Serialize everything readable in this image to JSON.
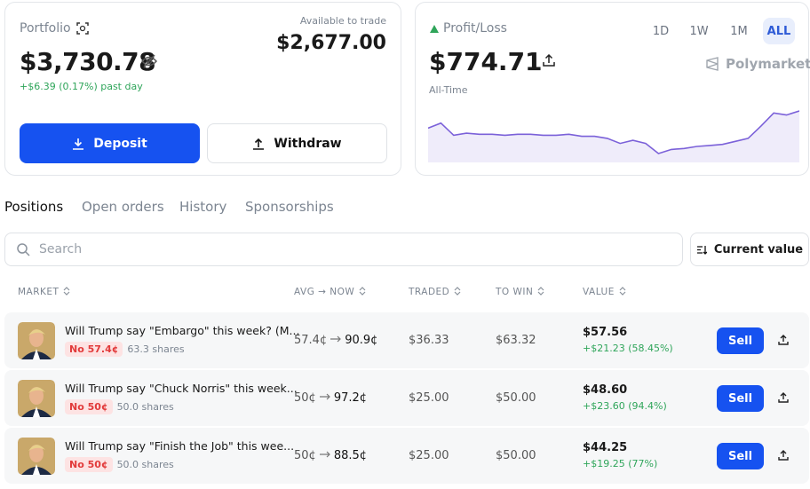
{
  "portfolio": {
    "label": "Portfolio",
    "value": "$3,730.78",
    "change": "+$6.39 (0.17%) past day",
    "available_label": "Available to trade",
    "available_value": "$2,677.00",
    "deposit": "Deposit",
    "withdraw": "Withdraw"
  },
  "pnl": {
    "label": "Profit/Loss",
    "value": "$774.71",
    "period": "All-Time",
    "ranges": [
      "1D",
      "1W",
      "1M",
      "ALL"
    ],
    "active_range": "ALL",
    "brand": "Polymarket",
    "chart": {
      "type": "line",
      "color": "#7b61d9",
      "values": [
        55,
        60,
        48,
        50,
        49,
        49,
        48,
        49,
        49,
        48,
        48,
        49,
        47,
        47,
        45,
        40,
        43,
        40,
        30,
        34,
        35,
        37,
        38,
        39,
        42,
        45,
        57,
        70,
        68,
        72
      ]
    }
  },
  "tabs": [
    "Positions",
    "Open orders",
    "History",
    "Sponsorships"
  ],
  "active_tab": "Positions",
  "search": {
    "placeholder": "Search",
    "sort": "Current value"
  },
  "table": {
    "columns": [
      "MARKET",
      "AVG → NOW",
      "TRADED",
      "TO WIN",
      "VALUE"
    ],
    "rows": [
      {
        "title": "Will Trump say \"Embargo\" this week? (M...",
        "outcome": "No 57.4¢",
        "shares": "63.3 shares",
        "avg": "57.4¢",
        "now": "90.9¢",
        "traded": "$36.33",
        "to_win": "$63.32",
        "value": "$57.56",
        "change": "+$21.23 (58.45%)",
        "action": "Sell"
      },
      {
        "title": "Will Trump say \"Chuck Norris\" this week...",
        "outcome": "No 50¢",
        "shares": "50.0 shares",
        "avg": "50¢",
        "now": "97.2¢",
        "traded": "$25.00",
        "to_win": "$50.00",
        "value": "$48.60",
        "change": "+$23.60 (94.4%)",
        "action": "Sell"
      },
      {
        "title": "Will Trump say \"Finish the Job\" this wee...",
        "outcome": "No 50¢",
        "shares": "50.0 shares",
        "avg": "50¢",
        "now": "88.5¢",
        "traded": "$25.00",
        "to_win": "$50.00",
        "value": "$44.25",
        "change": "+$19.25 (77%)",
        "action": "Sell"
      }
    ]
  }
}
